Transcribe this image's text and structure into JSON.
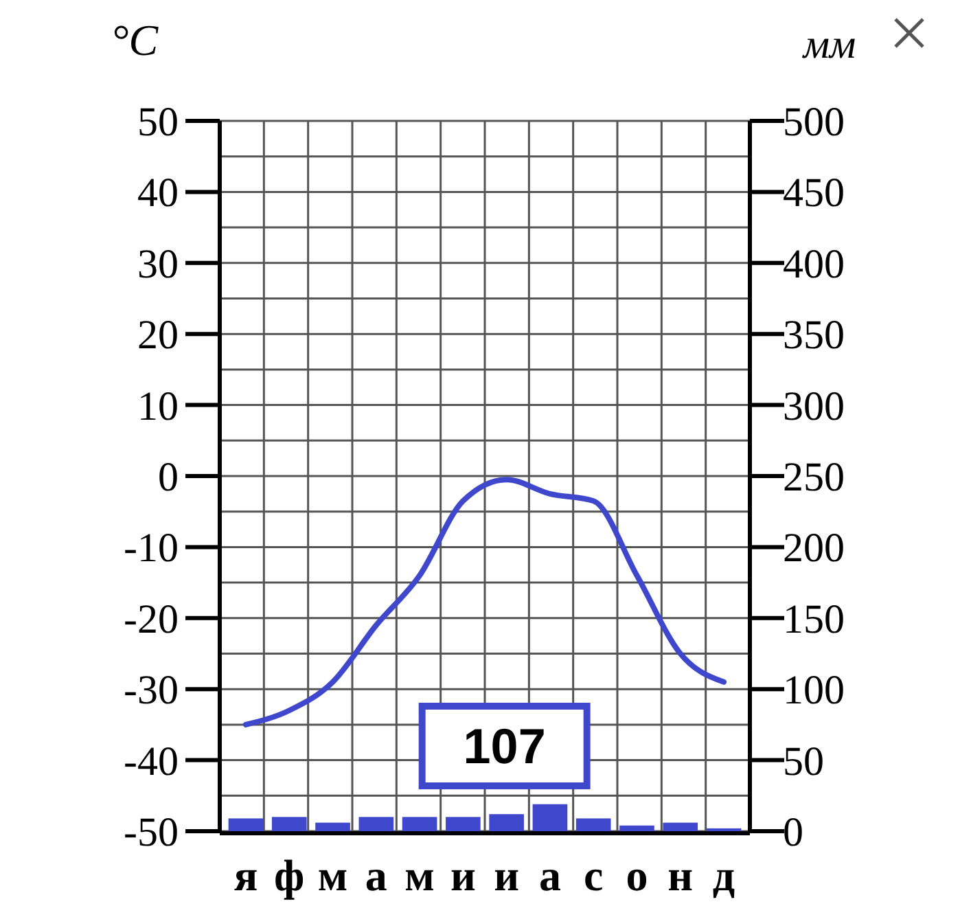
{
  "chart_data": {
    "type": "bar",
    "ylabel": "°C",
    "y2label": "мм",
    "categories": [
      "я",
      "ф",
      "м",
      "а",
      "м",
      "и",
      "и",
      "а",
      "с",
      "о",
      "н",
      "д"
    ],
    "series": [
      {
        "axis": "y2",
        "color": "#3f48cc",
        "values": [
          9,
          10,
          6,
          10,
          10,
          10,
          12,
          19,
          9,
          4,
          6,
          2
        ]
      },
      {
        "type": "line",
        "color": "#3f48cc",
        "values": [
          -35,
          -33,
          -29,
          -21,
          -14,
          -3.5,
          -0.5,
          -2.5,
          -3.5,
          -14,
          -25,
          -29
        ]
      }
    ],
    "ylim": [
      -50,
      50
    ],
    "yticks": [
      -50,
      {
        "value": -45,
        "label": null
      },
      -40,
      {
        "value": -35,
        "label": null
      },
      -30,
      {
        "value": -25,
        "label": null
      },
      -20,
      {
        "value": -15,
        "label": null
      },
      -10,
      {
        "value": -5,
        "label": null
      },
      0,
      {
        "value": 5,
        "label": null
      },
      10,
      {
        "value": 15,
        "label": null
      },
      20,
      {
        "value": 25,
        "label": null
      },
      30,
      {
        "value": 35,
        "label": null
      },
      40,
      {
        "value": 45,
        "label": null
      },
      50
    ],
    "y2lim": [
      0,
      500
    ],
    "y2ticks": [
      0,
      50,
      100,
      150,
      200,
      250,
      300,
      350,
      400,
      450,
      500
    ],
    "grid": true,
    "annotations": [
      "107"
    ]
  }
}
